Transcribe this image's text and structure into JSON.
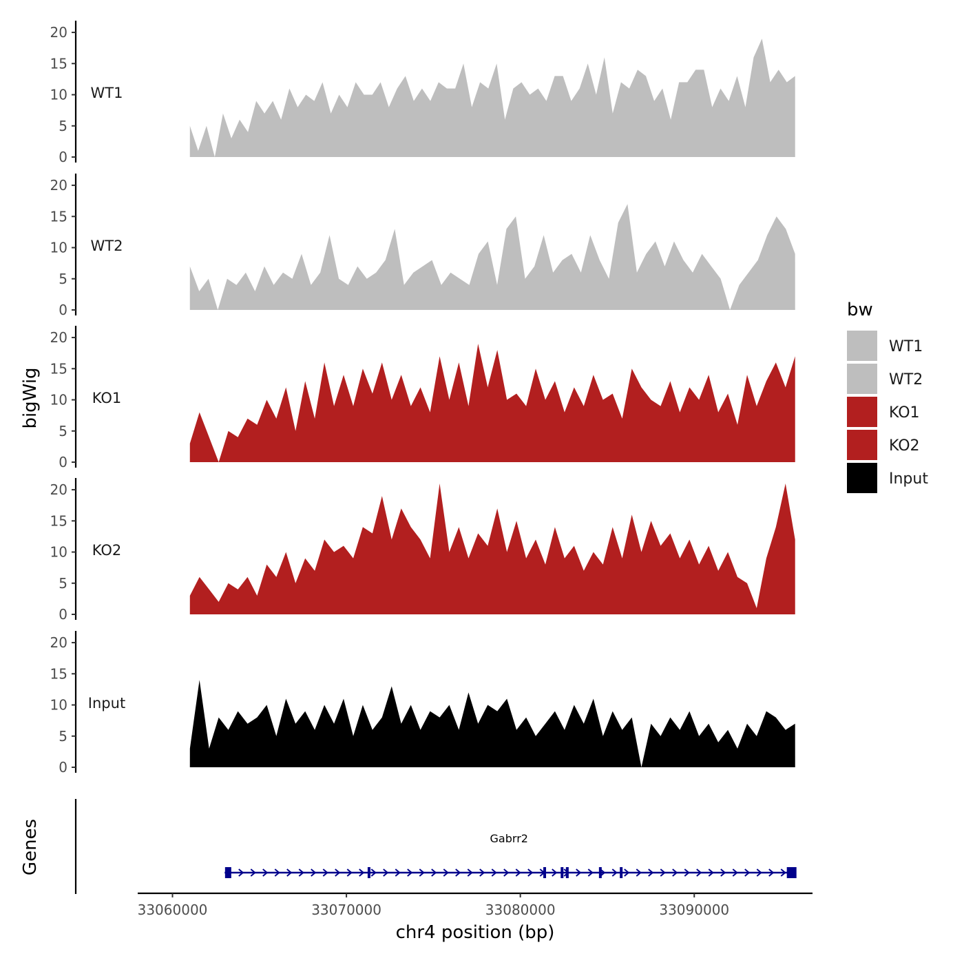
{
  "chart_data": {
    "type": "area",
    "title": "",
    "xlabel": "chr4 position (bp)",
    "ylabel": "bigWig",
    "genes_label": "Genes",
    "xlim": [
      33058000,
      33096800
    ],
    "x_ticks": [
      33060000,
      33070000,
      33080000,
      33090000
    ],
    "x_tick_labels": [
      "33060000",
      "33070000",
      "33080000",
      "33090000"
    ],
    "ylim": [
      0,
      21
    ],
    "y_ticks": [
      0,
      5,
      10,
      15,
      20
    ],
    "y_tick_labels": [
      "0",
      "5",
      "10",
      "15",
      "20"
    ],
    "region": [
      33061000,
      33095800
    ],
    "legend": {
      "title": "bw",
      "position": "right",
      "entries": [
        {
          "name": "WT1",
          "color": "#bebebe"
        },
        {
          "name": "WT2",
          "color": "#bebebe"
        },
        {
          "name": "KO1",
          "color": "#b21f1f"
        },
        {
          "name": "KO2",
          "color": "#b21f1f"
        },
        {
          "name": "Input",
          "color": "#000000"
        }
      ]
    },
    "series": [
      {
        "name": "WT1",
        "color": "#bebebe",
        "values": [
          5,
          1,
          5,
          0,
          7,
          3,
          6,
          4,
          9,
          7,
          9,
          6,
          11,
          8,
          10,
          9,
          12,
          7,
          10,
          8,
          12,
          10,
          10,
          12,
          8,
          11,
          13,
          9,
          11,
          9,
          12,
          11,
          11,
          15,
          8,
          12,
          11,
          15,
          6,
          11,
          12,
          10,
          11,
          9,
          13,
          13,
          9,
          11,
          15,
          10,
          16,
          7,
          12,
          11,
          14,
          13,
          9,
          11,
          6,
          12,
          12,
          14,
          14,
          8,
          11,
          9,
          13,
          8,
          16,
          19,
          12,
          14,
          12,
          13
        ]
      },
      {
        "name": "WT2",
        "color": "#bebebe",
        "values": [
          7,
          3,
          5,
          0,
          5,
          4,
          6,
          3,
          7,
          4,
          6,
          5,
          9,
          4,
          6,
          12,
          5,
          4,
          7,
          5,
          6,
          8,
          13,
          4,
          6,
          7,
          8,
          4,
          6,
          5,
          4,
          9,
          11,
          4,
          13,
          15,
          5,
          7,
          12,
          6,
          8,
          9,
          6,
          12,
          8,
          5,
          14,
          17,
          6,
          9,
          11,
          7,
          11,
          8,
          6,
          9,
          7,
          5,
          0,
          4,
          6,
          8,
          12,
          15,
          13,
          9
        ]
      },
      {
        "name": "KO1",
        "color": "#b21f1f",
        "values": [
          3,
          8,
          4,
          0,
          5,
          4,
          7,
          6,
          10,
          7,
          12,
          5,
          13,
          7,
          16,
          9,
          14,
          9,
          15,
          11,
          16,
          10,
          14,
          9,
          12,
          8,
          17,
          10,
          16,
          9,
          19,
          12,
          18,
          10,
          11,
          9,
          15,
          10,
          13,
          8,
          12,
          9,
          14,
          10,
          11,
          7,
          15,
          12,
          10,
          9,
          13,
          8,
          12,
          10,
          14,
          8,
          11,
          6,
          14,
          9,
          13,
          16,
          12,
          17
        ]
      },
      {
        "name": "KO2",
        "color": "#b21f1f",
        "values": [
          3,
          6,
          4,
          2,
          5,
          4,
          6,
          3,
          8,
          6,
          10,
          5,
          9,
          7,
          12,
          10,
          11,
          9,
          14,
          13,
          19,
          12,
          17,
          14,
          12,
          9,
          21,
          10,
          14,
          9,
          13,
          11,
          17,
          10,
          15,
          9,
          12,
          8,
          14,
          9,
          11,
          7,
          10,
          8,
          14,
          9,
          16,
          10,
          15,
          11,
          13,
          9,
          12,
          8,
          11,
          7,
          10,
          6,
          5,
          1,
          9,
          14,
          21,
          12
        ]
      },
      {
        "name": "Input",
        "color": "#000000",
        "values": [
          3,
          14,
          3,
          8,
          6,
          9,
          7,
          8,
          10,
          5,
          11,
          7,
          9,
          6,
          10,
          7,
          11,
          5,
          10,
          6,
          8,
          13,
          7,
          10,
          6,
          9,
          8,
          10,
          6,
          12,
          7,
          10,
          9,
          11,
          6,
          8,
          5,
          7,
          9,
          6,
          10,
          7,
          11,
          5,
          9,
          6,
          8,
          0,
          7,
          5,
          8,
          6,
          9,
          5,
          7,
          4,
          6,
          3,
          7,
          5,
          9,
          8,
          6,
          7
        ]
      }
    ],
    "gene": {
      "name": "Gabrr2",
      "color": "#00008b",
      "start": 33063000,
      "end": 33095700,
      "exons": [
        33063200,
        33071300,
        33081400,
        33082400,
        33082700,
        33084600,
        33085800,
        33095600
      ]
    }
  }
}
